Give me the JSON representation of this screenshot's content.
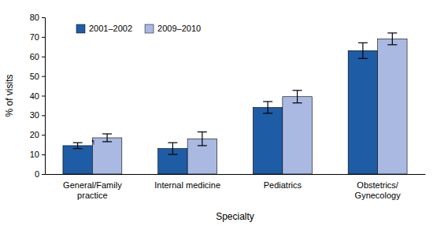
{
  "chart_data": {
    "type": "bar",
    "categories": [
      "General/Family\npractice",
      "Internal medicine",
      "Pediatrics",
      "Obstetrics/\nGynecology"
    ],
    "series": [
      {
        "name": "2001–2002",
        "color": "#1f5ca6",
        "values": [
          14.5,
          13,
          34,
          63
        ],
        "errors": [
          1.5,
          3,
          3,
          4
        ]
      },
      {
        "name": "2009–2010",
        "color": "#a9b9e2",
        "values": [
          18.5,
          18,
          39.5,
          69
        ],
        "errors": [
          2,
          3.5,
          3.2,
          3
        ]
      }
    ],
    "x_label": "Specialty",
    "y_label": "% of visits",
    "ylim": [
      0,
      80
    ],
    "yticks": [
      0,
      10,
      20,
      30,
      40,
      50,
      60,
      70,
      80
    ],
    "legend": "top-left",
    "grid": false,
    "annotations": [
      {
        "text": "¶",
        "category": 0,
        "series": 0
      }
    ]
  }
}
